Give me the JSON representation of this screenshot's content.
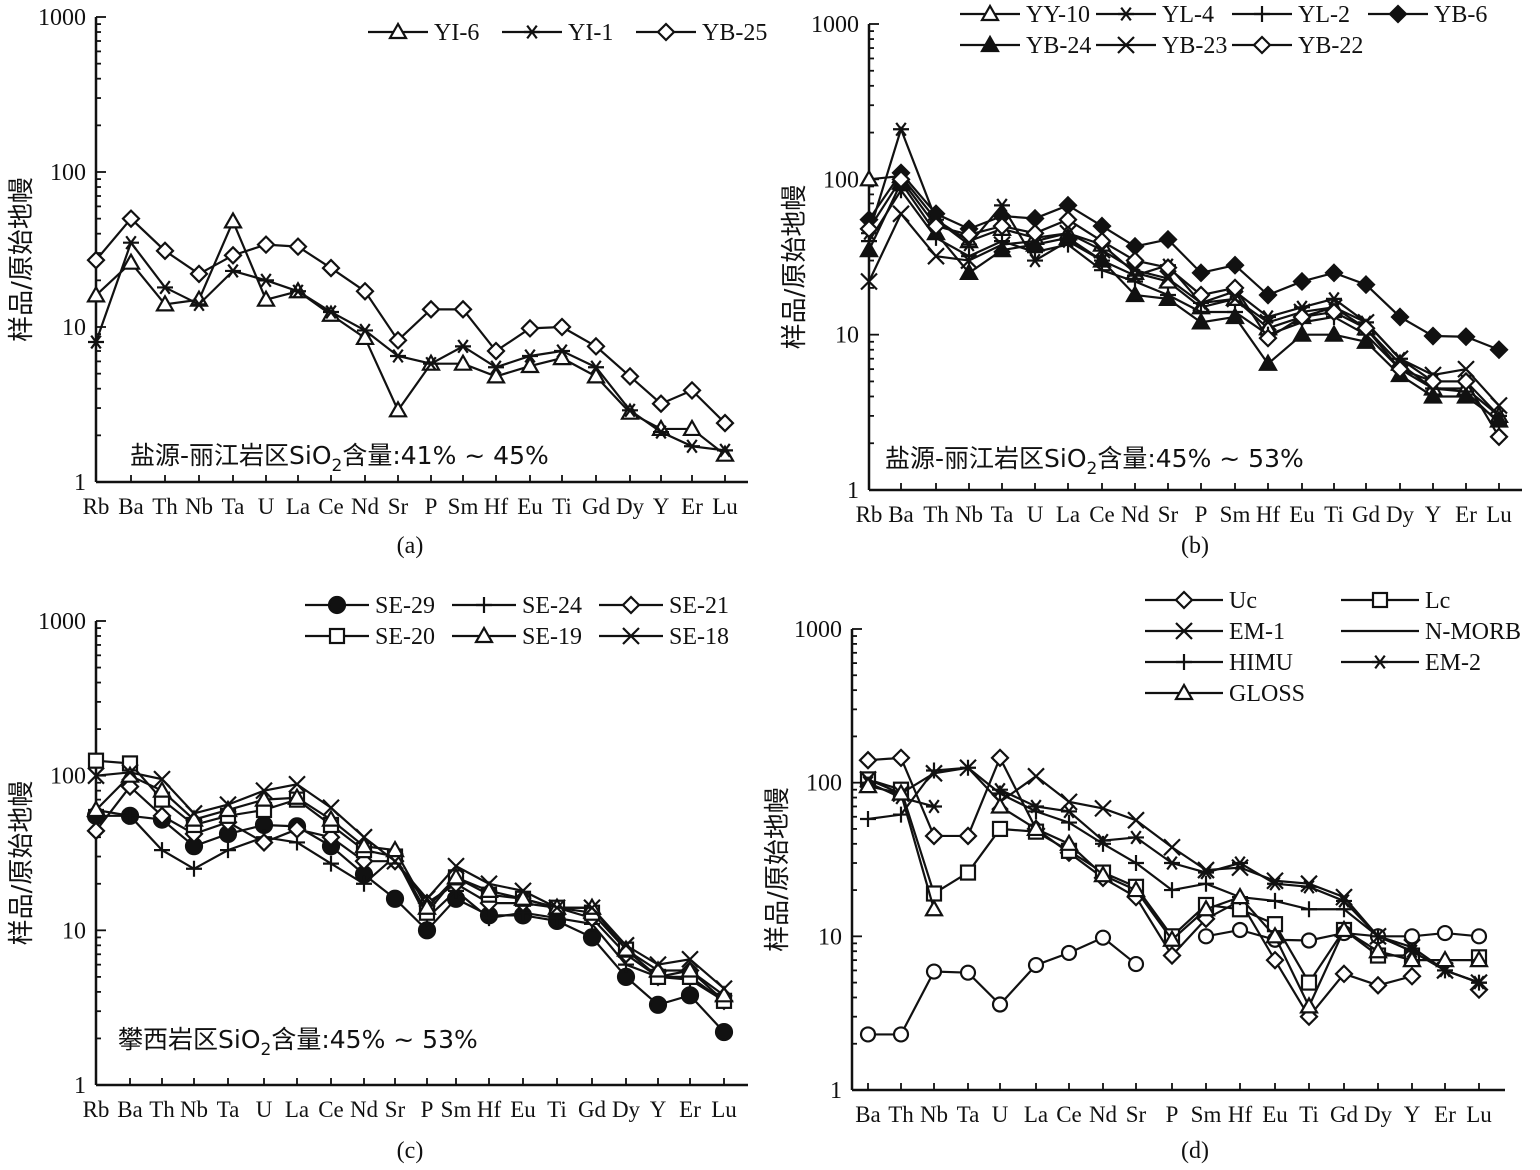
{
  "figure": {
    "subplot_labels": [
      "(a)",
      "(b)",
      "(c)",
      "(d)"
    ]
  },
  "chart_data": [
    {
      "id": "a",
      "type": "line",
      "yscale": "log",
      "ylim": [
        1,
        1000
      ],
      "ylabel": "样品/原始地幔",
      "ytick_labels": [
        "1",
        "10",
        "100",
        "1000"
      ],
      "categories": [
        "Rb",
        "Ba",
        "Th",
        "Nb",
        "Ta",
        "U",
        "La",
        "Ce",
        "Nd",
        "Sr",
        "P",
        "Sm",
        "Hf",
        "Eu",
        "Ti",
        "Gd",
        "Dy",
        "Y",
        "Er",
        "Lu"
      ],
      "tick_labels": [
        "Rb",
        "Ba",
        "Th",
        "Nb",
        "Ta",
        "U",
        "La",
        "Ce",
        "Nd",
        "Sr",
        "P",
        "Sm",
        "Hf",
        "Eu",
        "Ti",
        "Gd",
        "Dy",
        "Y",
        "Er",
        "Lu"
      ],
      "annotation": {
        "pre": "盐源-丽江岩区SiO",
        "sub": "2",
        "post": "含量:41% ~ 45%"
      },
      "legend": {
        "position": "top-right"
      },
      "series": [
        {
          "name": "YI-6",
          "marker": "triangle",
          "values": [
            16,
            26,
            14,
            15,
            48,
            15,
            17,
            12,
            8.5,
            2.9,
            5.8,
            5.8,
            4.8,
            5.6,
            6.3,
            4.8,
            2.8,
            2.2,
            2.2,
            1.5
          ]
        },
        {
          "name": "YI-1",
          "marker": "asterisk",
          "values": [
            8,
            35,
            18,
            14,
            23,
            20,
            17,
            12.5,
            9.5,
            6.5,
            5.8,
            7.5,
            5.5,
            6.5,
            7.0,
            5.5,
            2.9,
            2.1,
            1.7,
            1.6
          ]
        },
        {
          "name": "YB-25",
          "marker": "diamond",
          "values": [
            27,
            50,
            31,
            22,
            29,
            34,
            33,
            24,
            17,
            8.2,
            13,
            13,
            7.0,
            9.8,
            10,
            7.5,
            4.8,
            3.2,
            3.9,
            2.4
          ]
        }
      ]
    },
    {
      "id": "b",
      "type": "line",
      "yscale": "log",
      "ylim": [
        1,
        1000
      ],
      "ylabel": "样品/原始地幔",
      "ytick_labels": [
        "1",
        "10",
        "100",
        "1000"
      ],
      "categories": [
        "Rb",
        "Ba",
        "Th",
        "Nb",
        "Ta",
        "U",
        "La",
        "Ce",
        "Nd",
        "Sr",
        "P",
        "Sm",
        "Hf",
        "Eu",
        "Ti",
        "Gd",
        "Dy",
        "Y",
        "Er",
        "Lu"
      ],
      "tick_labels": [
        "Rb",
        "Ba",
        "Th",
        "Nb",
        "Ta",
        "U",
        "La",
        "Ce",
        "Nd",
        "Sr",
        "P",
        "Sm",
        "Hf",
        "Eu",
        "Ti",
        "Gd",
        "Dy",
        "Y",
        "Er",
        "Lu"
      ],
      "annotation": {
        "pre": "盐源-丽江岩区SiO",
        "sub": "2",
        "post": "含量:45% ~ 53%"
      },
      "legend": {
        "position": "top"
      },
      "series": [
        {
          "name": "YY-10",
          "marker": "triangle",
          "values": [
            100,
            105,
            55,
            40,
            48,
            42,
            45,
            38,
            25,
            22,
            15,
            17,
            11,
            13,
            15,
            11,
            6.5,
            4.5,
            4.5,
            3.0
          ]
        },
        {
          "name": "YL-4",
          "marker": "asterisk",
          "values": [
            45,
            210,
            55,
            38,
            68,
            30,
            40,
            30,
            24,
            28,
            16,
            19,
            13,
            15,
            17,
            12,
            7.0,
            5.0,
            5.0,
            3.0
          ]
        },
        {
          "name": "YL-2",
          "marker": "plus",
          "values": [
            40,
            85,
            42,
            32,
            40,
            34,
            38,
            26,
            22,
            18,
            14,
            14,
            10,
            12,
            13,
            10,
            6.0,
            4.5,
            4.3,
            2.7
          ]
        },
        {
          "name": "YB-6",
          "marker": "diamond_filled",
          "values": [
            55,
            110,
            60,
            48,
            58,
            56,
            68,
            50,
            37,
            41,
            25,
            28,
            18,
            22,
            25,
            21,
            13,
            9.8,
            9.7,
            8.0
          ]
        },
        {
          "name": "YB-24",
          "marker": "triangle_filled",
          "values": [
            35,
            95,
            45,
            25,
            35,
            38,
            42,
            30,
            18,
            17,
            12,
            13,
            6.5,
            10,
            10,
            9.0,
            5.5,
            4.0,
            4.0,
            2.8
          ]
        },
        {
          "name": "YB-23",
          "marker": "x",
          "values": [
            22,
            60,
            32,
            30,
            38,
            40,
            45,
            35,
            26,
            23,
            16,
            17,
            12,
            14,
            15,
            12,
            7.0,
            5.5,
            6.0,
            3.5
          ]
        },
        {
          "name": "YB-22",
          "marker": "diamond",
          "values": [
            48,
            100,
            50,
            44,
            50,
            45,
            55,
            40,
            30,
            27,
            18,
            20,
            9.5,
            13,
            14,
            11,
            6.0,
            5.0,
            5.0,
            2.2
          ]
        }
      ]
    },
    {
      "id": "c",
      "type": "line",
      "yscale": "log",
      "ylim": [
        1,
        1000
      ],
      "ylabel": "样品/原始地幔",
      "ytick_labels": [
        "1",
        "10",
        "100",
        "1000"
      ],
      "categories": [
        "Rb",
        "Ba",
        "Th",
        "Nb",
        "Ta",
        "U",
        "La",
        "Ce",
        "Nd",
        "Sr",
        "P",
        "Sm",
        "Hf",
        "Eu",
        "Ti",
        "Gd",
        "Dy",
        "Y",
        "Er",
        "Lu"
      ],
      "tick_labels": [
        "Rb",
        "Ba",
        "Th",
        "Nb",
        "Ta",
        "U",
        "La",
        "Ce",
        "Nd",
        "Sr",
        "P",
        "Sm",
        "Hf",
        "Eu",
        "Ti",
        "Gd",
        "Dy",
        "Y",
        "Er",
        "Lu"
      ],
      "annotation": {
        "pre": "攀西岩区SiO",
        "sub": "2",
        "post": "含量:45% ~ 53%"
      },
      "legend": {
        "position": "top-right"
      },
      "series": [
        {
          "name": "SE-29",
          "marker": "circle_filled",
          "values": [
            55,
            55,
            52,
            35,
            42,
            48,
            47,
            35,
            23,
            16,
            10,
            16,
            12.5,
            12.5,
            11.5,
            9.0,
            5.0,
            3.3,
            3.8,
            2.2
          ]
        },
        {
          "name": "SE-24",
          "marker": "plus",
          "values": [
            60,
            55,
            33,
            25,
            33,
            40,
            37,
            27,
            20,
            30,
            12,
            18,
            12,
            13,
            12,
            11,
            6.0,
            5.0,
            4.8,
            3.5
          ]
        },
        {
          "name": "SE-21",
          "marker": "diamond",
          "values": [
            44,
            85,
            55,
            42,
            50,
            37,
            45,
            40,
            28,
            28,
            15,
            20,
            15,
            15,
            14,
            12,
            7.0,
            5.0,
            5.5,
            3.5
          ]
        },
        {
          "name": "SE-20",
          "marker": "square",
          "values": [
            125,
            120,
            70,
            48,
            55,
            60,
            70,
            48,
            33,
            30,
            13,
            22,
            17,
            16,
            14,
            13,
            7.5,
            5.0,
            5.0,
            3.5
          ]
        },
        {
          "name": "SE-19",
          "marker": "triangle",
          "values": [
            60,
            100,
            80,
            52,
            60,
            70,
            72,
            52,
            35,
            33,
            14,
            22,
            18,
            16,
            14,
            14,
            7.5,
            5.5,
            5.5,
            3.8
          ]
        },
        {
          "name": "SE-18",
          "marker": "x",
          "values": [
            100,
            105,
            95,
            57,
            65,
            80,
            88,
            62,
            40,
            28,
            16,
            26,
            20,
            18,
            14,
            14,
            8.0,
            6.0,
            6.5,
            4.2
          ]
        }
      ]
    },
    {
      "id": "d",
      "type": "line",
      "yscale": "log",
      "ylim": [
        1,
        1000
      ],
      "ylabel": "样品/原始地幔",
      "ytick_labels": [
        "1",
        "10",
        "100",
        "1000"
      ],
      "categories": [
        "Ba",
        "Th",
        "Nb",
        "Ta",
        "U",
        "La",
        "Ce",
        "Nd",
        "Sr",
        "P",
        "Sm",
        "Hf",
        "Eu",
        "Ti",
        "Gd",
        "Dy",
        "Y",
        "Er",
        "Lu"
      ],
      "tick_labels": [
        "Ba",
        "Th",
        "Nb",
        "Ta",
        "U",
        "La",
        "Ce",
        "Nd",
        "Sr",
        "P",
        "Sm",
        "Hf",
        "Eu",
        "Ti",
        "Gd",
        "Dy",
        "Y",
        "Er",
        "Lu"
      ],
      "legend": {
        "position": "top-right"
      },
      "series": [
        {
          "name": "Uc",
          "marker": "diamond",
          "values": [
            140,
            145,
            45,
            45,
            145,
            50,
            35,
            24,
            18,
            7.5,
            13,
            17,
            7.0,
            3.0,
            5.7,
            4.8,
            5.5,
            null,
            4.5
          ]
        },
        {
          "name": "Lc",
          "marker": "square",
          "values": [
            105,
            90,
            19,
            26,
            50,
            48,
            36,
            26,
            21,
            10,
            16,
            15,
            12,
            5.0,
            11,
            7.5,
            7.5,
            null,
            7.3
          ]
        },
        {
          "name": "EM-1",
          "marker": "x",
          "values": [
            105,
            85,
            115,
            125,
            75,
            110,
            75,
            68,
            57,
            38,
            27,
            28,
            23,
            22,
            18,
            10,
            8.5,
            6.0,
            5.0
          ]
        },
        {
          "name": "N-MORB",
          "marker": "circle",
          "values": [
            2.3,
            2.3,
            5.9,
            5.8,
            3.6,
            6.5,
            7.8,
            9.8,
            6.6,
            null,
            10,
            11,
            9.5,
            9.4,
            10.5,
            10,
            10,
            10.5,
            10
          ]
        },
        {
          "name": "HIMU",
          "marker": "plus",
          "values": [
            58,
            62,
            120,
            125,
            85,
            65,
            55,
            40,
            30,
            20,
            22,
            18,
            17,
            15,
            15,
            10,
            8,
            6,
            5
          ]
        },
        {
          "name": "EM-2",
          "marker": "asterisk",
          "values": [
            100,
            80,
            70,
            null,
            90,
            70,
            65,
            42,
            44,
            30,
            26,
            30,
            22,
            21,
            17,
            10,
            8.0,
            6.0,
            5.0
          ]
        },
        {
          "name": "GLOSS",
          "marker": "triangle",
          "values": [
            95,
            85,
            15,
            null,
            70,
            50,
            40,
            25,
            20,
            9.5,
            15,
            18,
            10,
            3.5,
            11,
            8,
            7,
            7,
            7
          ]
        }
      ]
    }
  ]
}
